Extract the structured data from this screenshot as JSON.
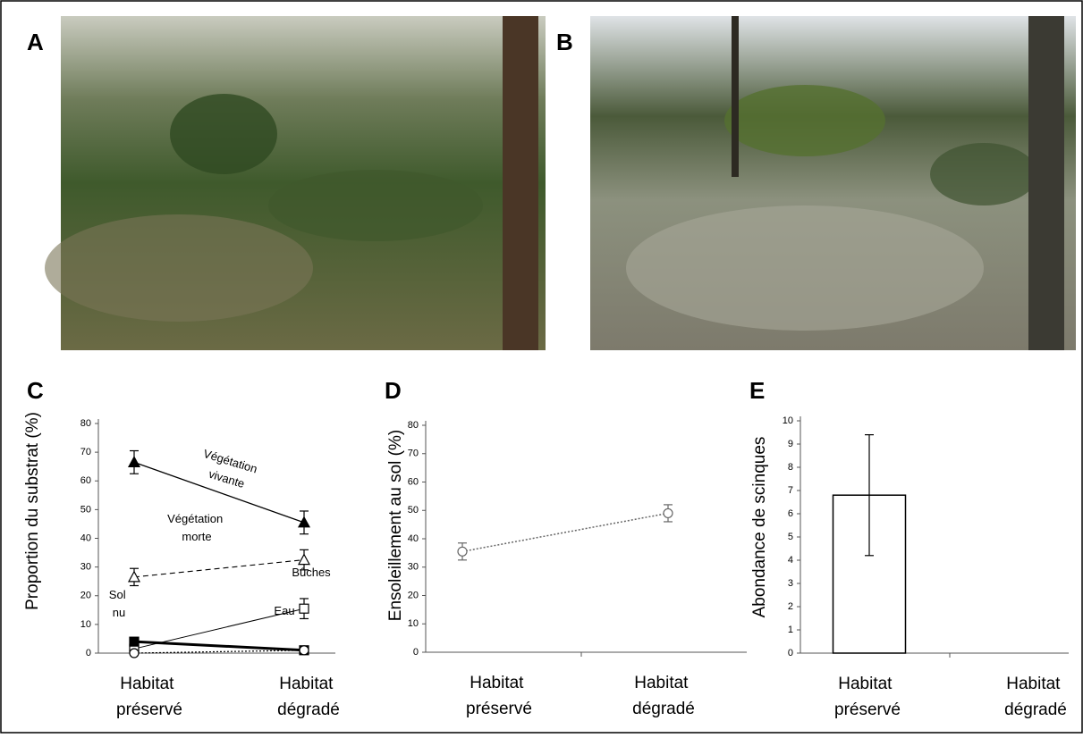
{
  "panel_labels": [
    "A",
    "B",
    "C",
    "D",
    "E"
  ],
  "chart_data": [
    {
      "type": "line",
      "ylabel": "Proportion du substrat (%)",
      "categories": [
        "Habitat préservé",
        "Habitat dégradé"
      ],
      "ylim": [
        0,
        80
      ],
      "yticks": [
        0,
        10,
        20,
        30,
        40,
        50,
        60,
        70,
        80
      ],
      "series": [
        {
          "name": "Végétation vivante",
          "color": "#000000",
          "marker": "triangle",
          "filled": true,
          "dash": "solid",
          "line_width": 1.3,
          "values": [
            66.5,
            45.5
          ],
          "errors": [
            4,
            4
          ]
        },
        {
          "name": "Végétation morte",
          "color": "#000000",
          "marker": "triangle",
          "filled": false,
          "dash": "dashed",
          "line_width": 1.1,
          "values": [
            26.5,
            32.5
          ],
          "errors": [
            3,
            3.5
          ]
        },
        {
          "name": "Bûches",
          "color": "#000000",
          "marker": "square",
          "filled": false,
          "dash": "solid",
          "line_width": 1,
          "values": [
            1.5,
            15.5
          ],
          "errors": [
            2,
            3.5
          ]
        },
        {
          "name": "Sol nu",
          "color": "#000000",
          "marker": "square",
          "filled": true,
          "dash": "solid",
          "line_width": 3,
          "values": [
            4,
            1
          ],
          "errors": [
            1,
            0.5
          ]
        },
        {
          "name": "Eau",
          "color": "#000000",
          "marker": "circle",
          "filled": false,
          "dash": "dotted",
          "line_width": 1.2,
          "values": [
            0,
            1
          ],
          "errors": [
            0.5,
            0.5
          ]
        }
      ]
    },
    {
      "type": "line",
      "ylabel": "Ensoleillement au sol (%)",
      "categories": [
        "Habitat préservé",
        "Habitat dégradé"
      ],
      "ylim": [
        0,
        80
      ],
      "yticks": [
        0,
        10,
        20,
        30,
        40,
        50,
        60,
        70,
        80
      ],
      "series": [
        {
          "name": null,
          "color": "#666666",
          "marker": "circle",
          "filled": false,
          "dash": "dotted",
          "line_width": 1.5,
          "values": [
            35.5,
            49
          ],
          "errors": [
            3,
            3
          ]
        }
      ]
    },
    {
      "type": "bar",
      "ylabel": "Abondance de scinques",
      "categories": [
        "Habitat préservé",
        "Habitat dégradé"
      ],
      "ylim": [
        0,
        10
      ],
      "yticks": [
        0,
        1,
        2,
        3,
        4,
        5,
        6,
        7,
        8,
        9,
        10
      ],
      "color": "#ffffff",
      "values": [
        6.8,
        0
      ],
      "errors": [
        2.6,
        null
      ]
    }
  ]
}
